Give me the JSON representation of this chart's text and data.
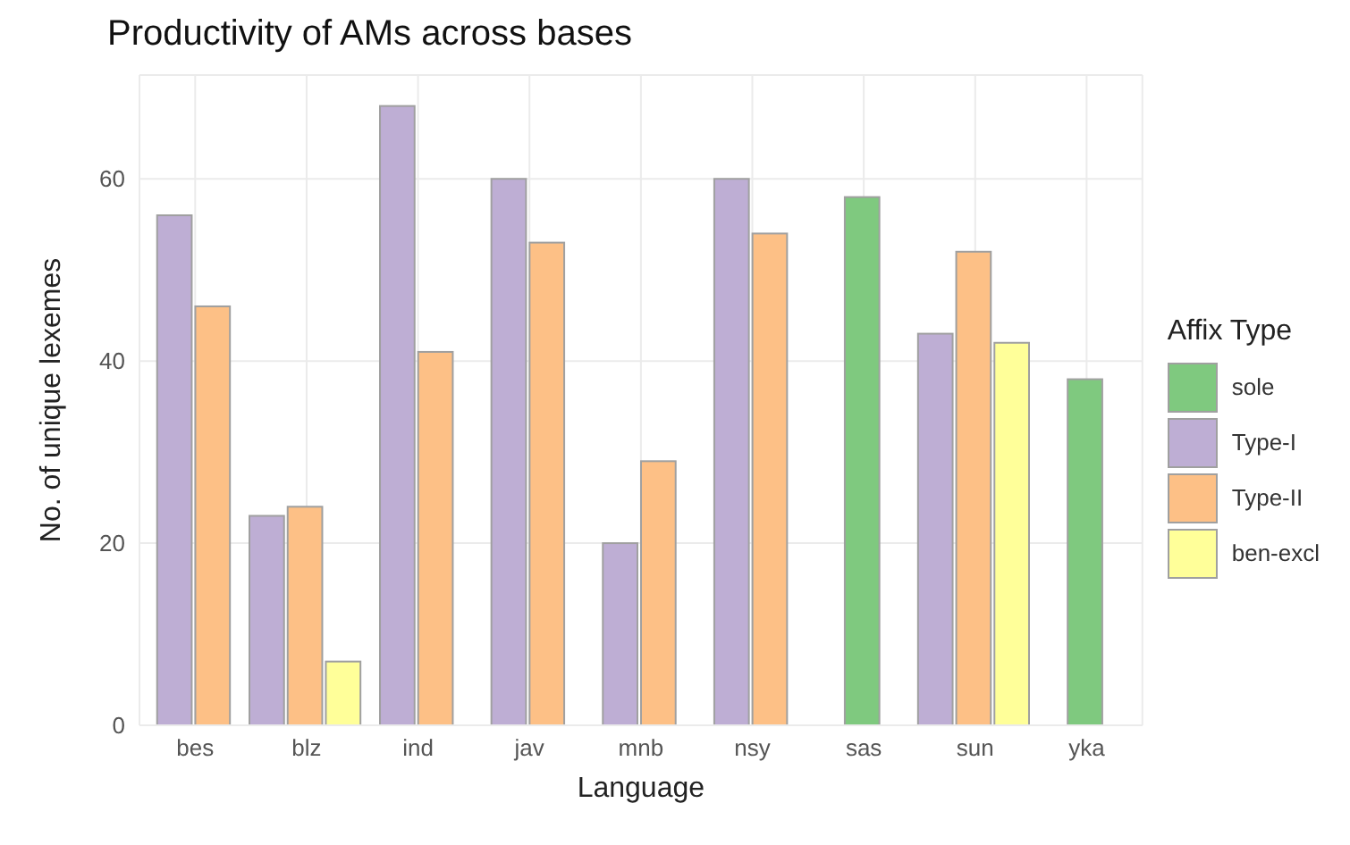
{
  "chart_data": {
    "type": "bar",
    "title": "Productivity of AMs across bases",
    "xlabel": "Language",
    "ylabel": "No. of unique lexemes",
    "legend_title": "Affix Type",
    "categories": [
      "bes",
      "blz",
      "ind",
      "jav",
      "mnb",
      "nsy",
      "sas",
      "sun",
      "yka"
    ],
    "series": [
      {
        "name": "sole",
        "color": "#7fc97f",
        "values": [
          null,
          null,
          null,
          null,
          null,
          null,
          58,
          null,
          38
        ]
      },
      {
        "name": "Type-I",
        "color": "#beaed4",
        "values": [
          56,
          23,
          68,
          60,
          20,
          60,
          null,
          43,
          null
        ]
      },
      {
        "name": "Type-II",
        "color": "#fdc086",
        "values": [
          46,
          24,
          41,
          53,
          29,
          54,
          null,
          52,
          null
        ]
      },
      {
        "name": "ben-excl",
        "color": "#ffff99",
        "values": [
          null,
          7,
          null,
          null,
          null,
          null,
          null,
          42,
          null
        ]
      }
    ],
    "ylim": [
      0,
      71.4
    ],
    "yticks": [
      0,
      20,
      40,
      60
    ],
    "grid": true,
    "legend": "right"
  }
}
